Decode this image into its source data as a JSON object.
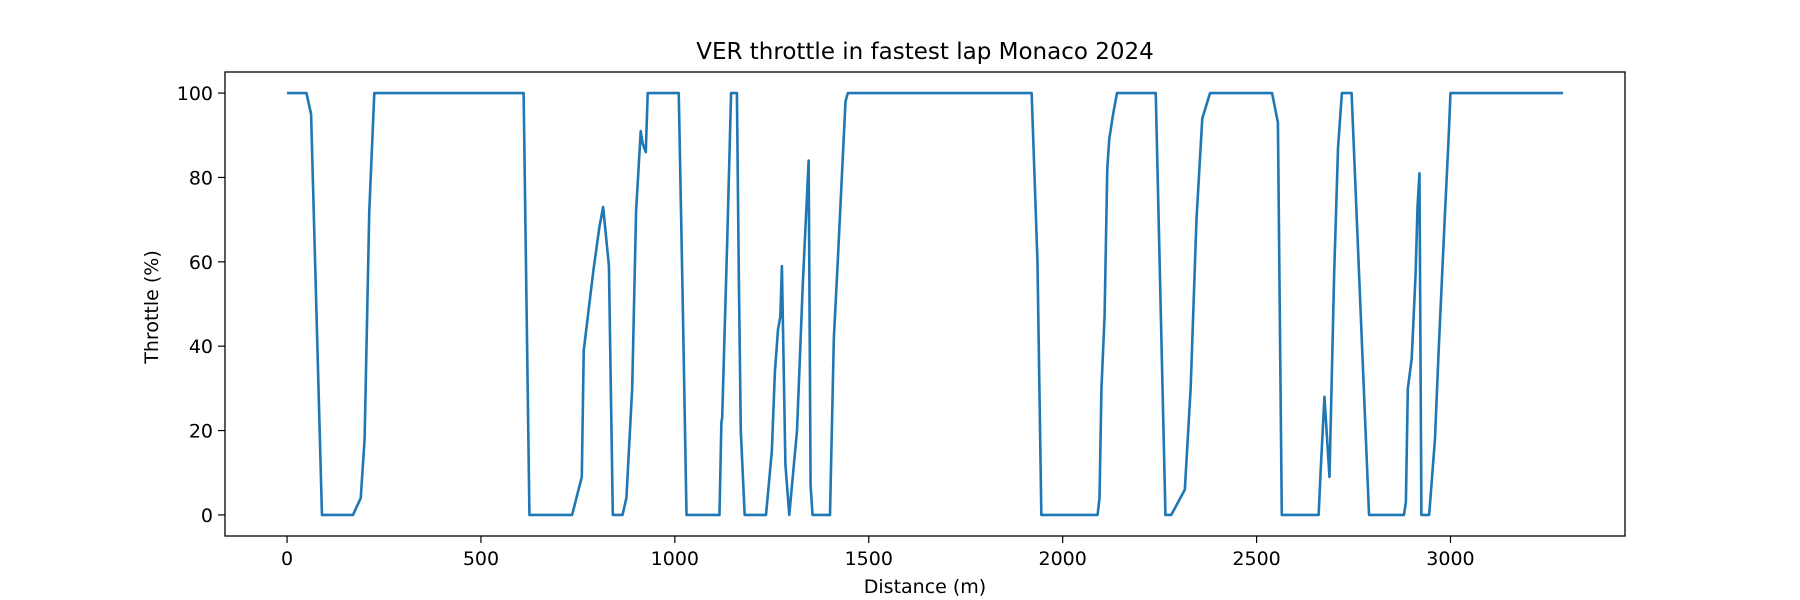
{
  "chart_data": {
    "type": "line",
    "title": "VER throttle in fastest lap Monaco 2024",
    "xlabel": "Distance (m)",
    "ylabel": "Throttle (%)",
    "xlim": [
      -160,
      3450
    ],
    "ylim": [
      -5,
      105
    ],
    "xticks": [
      0,
      500,
      1000,
      1500,
      2000,
      2500,
      3000
    ],
    "yticks": [
      0,
      20,
      40,
      60,
      80,
      100
    ],
    "grid": false,
    "line_color": "#1f77b4",
    "series": [
      {
        "x": [
          0,
          50,
          62,
          90,
          170,
          190,
          200,
          212,
          225,
          610,
          625,
          735,
          760,
          765,
          790,
          805,
          815,
          830,
          840,
          865,
          875,
          890,
          900,
          912,
          917,
          925,
          930,
          1010,
          1020,
          1030,
          1115,
          1120,
          1122,
          1135,
          1145,
          1160,
          1165,
          1170,
          1180,
          1190,
          1235,
          1240,
          1250,
          1258,
          1266,
          1272,
          1276,
          1285,
          1295,
          1315,
          1330,
          1345,
          1350,
          1355,
          1367,
          1400,
          1410,
          1420,
          1440,
          1446,
          1920,
          1935,
          1945,
          2085,
          2090,
          2095,
          2100,
          2108,
          2115,
          2120,
          2130,
          2140,
          2155,
          2165,
          2175,
          2185,
          2190,
          2240,
          2250,
          2265,
          2280,
          2315,
          2330,
          2345,
          2360,
          2380,
          2415,
          2540,
          2555,
          2565,
          2600,
          2610,
          2660,
          2665,
          2675,
          2688,
          2700,
          2710,
          2720,
          2730,
          2745,
          2790,
          2800,
          2810,
          2880,
          2885,
          2890,
          2900,
          2910,
          2915,
          2920,
          2925,
          2935,
          2945,
          2960,
          2970,
          2985,
          2995,
          3000,
          3010,
          3290
        ],
        "y": [
          100,
          100,
          95,
          0,
          0,
          4,
          18,
          72,
          100,
          100,
          0,
          0,
          9,
          39,
          58,
          68,
          73,
          59,
          0,
          0,
          4,
          30,
          72,
          91,
          88,
          86,
          100,
          100,
          52,
          0,
          0,
          22,
          23,
          65,
          100,
          100,
          56,
          20,
          0,
          0,
          0,
          5,
          15,
          34,
          44,
          47,
          59,
          12,
          0,
          20,
          55,
          84,
          7,
          0,
          0,
          0,
          42,
          60,
          98,
          100,
          100,
          60,
          0,
          0,
          0,
          4,
          30,
          47,
          82,
          89,
          95,
          100,
          100,
          100,
          100,
          100,
          100,
          100,
          60,
          0,
          0,
          6,
          30,
          70,
          94,
          100,
          100,
          100,
          93,
          0,
          0,
          0,
          0,
          10,
          28,
          9,
          57,
          87,
          100,
          100,
          100,
          0,
          0,
          0,
          0,
          3,
          30,
          37,
          57,
          73,
          81,
          0,
          0,
          0,
          18,
          40,
          70,
          89,
          100,
          100,
          100
        ]
      }
    ]
  }
}
